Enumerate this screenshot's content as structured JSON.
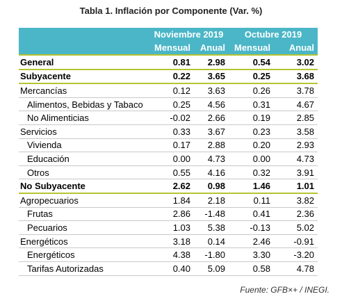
{
  "title": "Tabla 1. Inflación por Componente (Var. %)",
  "table": {
    "groups": [
      "Noviembre 2019",
      "Octubre 2019"
    ],
    "columns": [
      "Mensual",
      "Anual",
      "Mensual",
      "Anual"
    ],
    "rows": [
      [
        "General",
        "0.81",
        "2.98",
        "0.54",
        "3.02"
      ],
      [
        "Subyacente",
        "0.22",
        "3.65",
        "0.25",
        "3.68"
      ],
      [
        "Mercancías",
        "0.12",
        "3.63",
        "0.26",
        "3.78"
      ],
      [
        "Alimentos, Bebidas y Tabaco",
        "0.25",
        "4.56",
        "0.31",
        "4.67"
      ],
      [
        "No Alimenticias",
        "-0.02",
        "2.66",
        "0.19",
        "2.85"
      ],
      [
        "Servicios",
        "0.33",
        "3.67",
        "0.23",
        "3.58"
      ],
      [
        "Vivienda",
        "0.17",
        "2.88",
        "0.20",
        "2.93"
      ],
      [
        "Educación",
        "0.00",
        "4.73",
        "0.00",
        "4.73"
      ],
      [
        "Otros",
        "0.55",
        "4.16",
        "0.32",
        "3.91"
      ],
      [
        "No Subyacente",
        "2.62",
        "0.98",
        "1.46",
        "1.01"
      ],
      [
        "Agropecuarios",
        "1.84",
        "2.18",
        "0.11",
        "3.82"
      ],
      [
        "Frutas",
        "2.86",
        "-1.48",
        "0.41",
        "2.36"
      ],
      [
        "Pecuarios",
        "1.03",
        "5.38",
        "-0.13",
        "5.02"
      ],
      [
        "Energéticos",
        "3.18",
        "0.14",
        "2.46",
        "-0.91"
      ],
      [
        "Energéticos",
        "4.38",
        "-1.80",
        "3.30",
        "-3.20"
      ],
      [
        "Tarifas Autorizadas",
        "0.40",
        "5.09",
        "0.58",
        "4.78"
      ]
    ]
  },
  "source": "Fuente: GFB×+ /  INEGI."
}
